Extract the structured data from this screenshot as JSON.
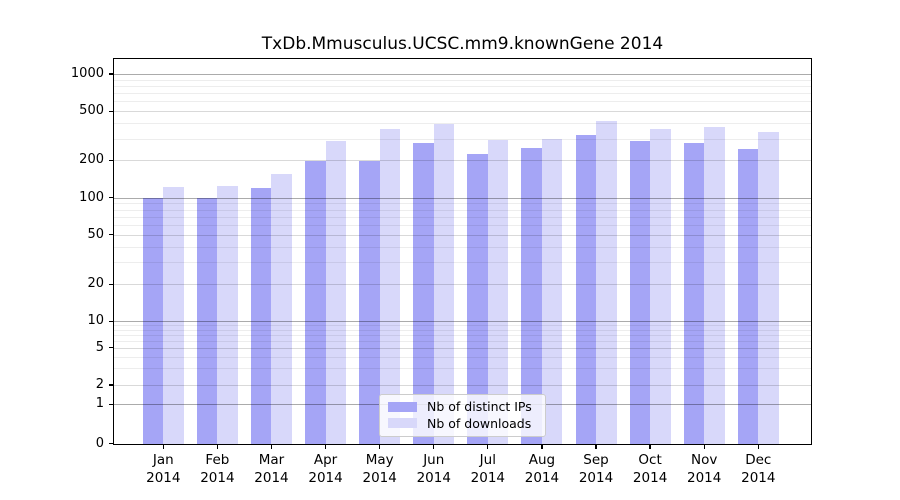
{
  "figure": {
    "background": "#ffffff"
  },
  "chart_data": {
    "type": "bar",
    "title": "TxDb.Mmusculus.UCSC.mm9.knownGene 2014",
    "categories": [
      "Jan",
      "Feb",
      "Mar",
      "Apr",
      "May",
      "Jun",
      "Jul",
      "Aug",
      "Sep",
      "Oct",
      "Nov",
      "Dec"
    ],
    "category_year": "2014",
    "series": [
      {
        "name": "Nb of distinct IPs",
        "color": "#a5a5f6",
        "values": [
          100,
          100,
          120,
          200,
          198,
          278,
          227,
          252,
          324,
          287,
          276,
          248
        ]
      },
      {
        "name": "Nb of downloads",
        "color": "#d8d8fa",
        "values": [
          122,
          125,
          155,
          290,
          362,
          394,
          291,
          297,
          420,
          362,
          372,
          340
        ]
      }
    ],
    "y_ticks": [
      0,
      1,
      2,
      5,
      10,
      20,
      50,
      100,
      200,
      500,
      1000
    ],
    "y_scale": "log above 1, compressed linear-log region between 0 and 1",
    "ylim": [
      0,
      1280
    ],
    "xlabel": "",
    "ylabel": "",
    "grid": true,
    "legend_position": "lower center"
  }
}
